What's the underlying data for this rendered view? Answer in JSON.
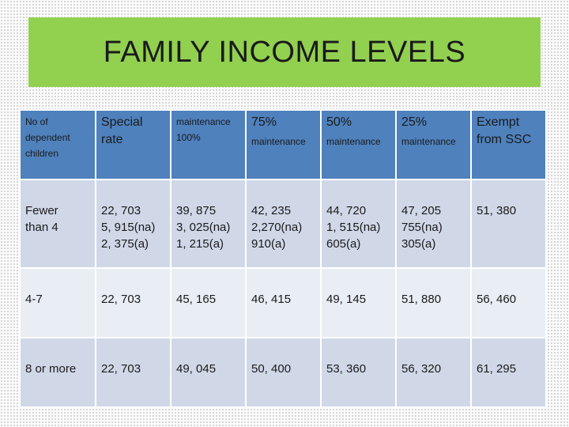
{
  "title": "FAMILY INCOME LEVELS",
  "columns": [
    {
      "lines": [
        "No of",
        "dependent",
        "children"
      ],
      "style": "small"
    },
    {
      "lines": [
        "Special",
        "rate"
      ],
      "style": "large"
    },
    {
      "lines": [
        "maintenance",
        "100%"
      ],
      "style": "small"
    },
    {
      "top": "75%",
      "bottom": "maintenance",
      "style": "mixed"
    },
    {
      "top": "50%",
      "bottom": "maintenance",
      "style": "mixed"
    },
    {
      "top": "25%",
      "bottom": "maintenance",
      "style": "mixed"
    },
    {
      "lines": [
        "Exempt",
        "from SSC"
      ],
      "style": "large"
    }
  ],
  "rows": [
    {
      "label": [
        "Fewer",
        "than 4"
      ],
      "cells": [
        [
          "22, 703",
          "5, 915(na)",
          "2, 375(a)"
        ],
        [
          "39, 875",
          "3, 025(na)",
          "1, 215(a)"
        ],
        [
          "42, 235",
          "2,270(na)",
          "910(a)"
        ],
        [
          "44, 720",
          "1, 515(na)",
          "605(a)"
        ],
        [
          "47, 205",
          "755(na)",
          "305(a)"
        ],
        [
          "51, 380"
        ]
      ]
    },
    {
      "label": [
        "4-7"
      ],
      "cells": [
        [
          "22, 703"
        ],
        [
          "45, 165"
        ],
        [
          "46, 415"
        ],
        [
          "49, 145"
        ],
        [
          "51, 880"
        ],
        [
          "56, 460"
        ]
      ]
    },
    {
      "label": [
        "8 or more"
      ],
      "cells": [
        [
          "22, 703"
        ],
        [
          "49, 045"
        ],
        [
          "50, 400"
        ],
        [
          "53, 360"
        ],
        [
          "56, 320"
        ],
        [
          "61, 295"
        ]
      ]
    }
  ]
}
